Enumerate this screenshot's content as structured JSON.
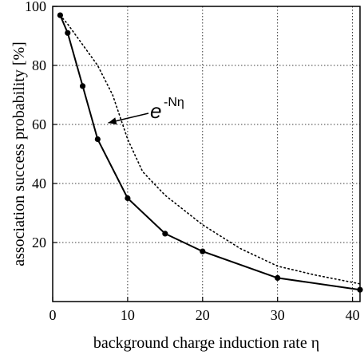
{
  "chart_data": {
    "type": "line",
    "xlabel": "background charge induction rate η",
    "ylabel": "association success probability [%]",
    "xlim": [
      0,
      41
    ],
    "ylim": [
      0,
      100
    ],
    "xticks": [
      0,
      10,
      20,
      30,
      40
    ],
    "yticks": [
      20,
      40,
      60,
      80,
      100
    ],
    "grid": true,
    "series": [
      {
        "style": "solid-markers",
        "x": [
          1,
          2,
          4,
          6,
          10,
          15,
          20,
          30,
          41
        ],
        "y": [
          97,
          91,
          73,
          55,
          35,
          23,
          17,
          8,
          4
        ]
      },
      {
        "style": "dotted",
        "x": [
          1,
          2,
          4,
          6,
          8,
          10,
          12,
          15,
          20,
          25,
          30,
          35,
          41
        ],
        "y": [
          97,
          94,
          87,
          80,
          70,
          55,
          44,
          36,
          26,
          18,
          12,
          9,
          6
        ]
      }
    ],
    "annotation": {
      "base": "e",
      "sup": "-Nη",
      "arrow_to": {
        "x": 7.2,
        "y": 60
      }
    }
  }
}
